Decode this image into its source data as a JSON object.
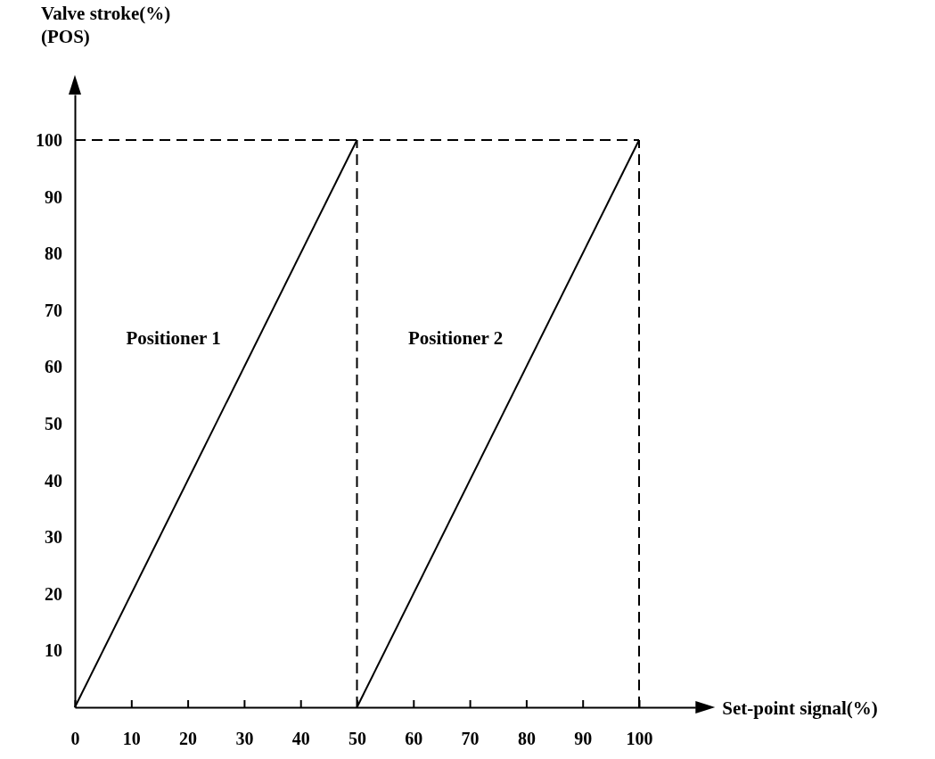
{
  "chart_data": {
    "type": "line",
    "xlabel": "Set-point signal(%)",
    "ylabel": "Valve stroke(%)\n(POS)",
    "xlim": [
      0,
      110
    ],
    "ylim": [
      0,
      108
    ],
    "xticks": [
      0,
      10,
      20,
      30,
      40,
      50,
      60,
      70,
      80,
      90,
      100
    ],
    "yticks": [
      10,
      20,
      30,
      40,
      50,
      60,
      70,
      80,
      90,
      100
    ],
    "series": [
      {
        "name": "Positioner 1",
        "color": "#000000",
        "x": [
          0,
          50
        ],
        "values": [
          0,
          100
        ]
      },
      {
        "name": "Positioner 2",
        "color": "#000000",
        "x": [
          50,
          100
        ],
        "values": [
          0,
          100
        ]
      }
    ],
    "ref_lines": [
      {
        "axis": "y",
        "value": 100,
        "line_style": "dashed",
        "color": "#000000"
      },
      {
        "axis": "x",
        "value": 50,
        "line_style": "dashed",
        "color": "#000000"
      },
      {
        "axis": "x",
        "value": 100,
        "line_style": "dashed",
        "color": "#000000"
      }
    ],
    "grid": false,
    "legend": false,
    "marker": "none",
    "line_style": "solid"
  }
}
